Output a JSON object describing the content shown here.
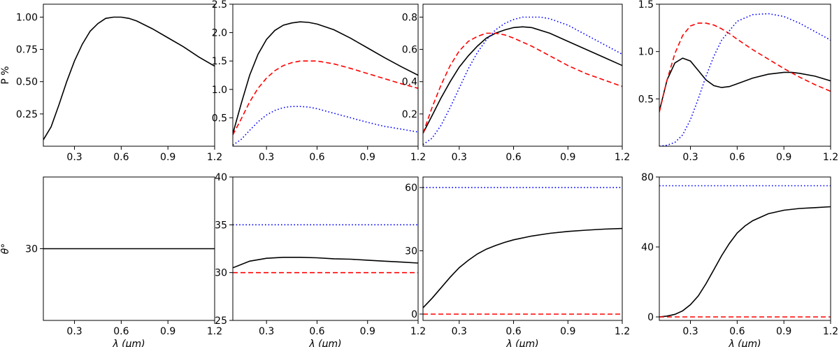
{
  "chart_data": [
    {
      "type": "line",
      "title": "",
      "xlabel": "",
      "ylabel": "P %",
      "xlim": [
        0.1,
        1.2
      ],
      "ylim": [
        0.0,
        1.1
      ],
      "xticks": [
        0.3,
        0.6,
        0.9,
        1.2
      ],
      "xtick_labels": [
        "0.3",
        "0.6",
        "0.9",
        "1.2"
      ],
      "yticks": [
        0.25,
        0.5,
        0.75,
        1.0
      ],
      "ytick_labels": [
        "0.25",
        "0.50",
        "0.75",
        "1.00"
      ],
      "series": [
        {
          "name": "black",
          "color": "#000000",
          "style": "solid",
          "x": [
            0.1,
            0.15,
            0.2,
            0.25,
            0.3,
            0.35,
            0.4,
            0.45,
            0.5,
            0.55,
            0.6,
            0.65,
            0.7,
            0.8,
            0.9,
            1.0,
            1.1,
            1.2
          ],
          "y": [
            0.05,
            0.15,
            0.32,
            0.5,
            0.66,
            0.79,
            0.89,
            0.95,
            0.99,
            1.0,
            1.0,
            0.99,
            0.97,
            0.91,
            0.84,
            0.77,
            0.69,
            0.62
          ]
        }
      ]
    },
    {
      "type": "line",
      "title": "",
      "xlabel": "",
      "ylabel": "",
      "xlim": [
        0.1,
        1.2
      ],
      "ylim": [
        0.0,
        2.5
      ],
      "xticks": [
        0.3,
        0.6,
        0.9,
        1.2
      ],
      "xtick_labels": [
        "0.3",
        "0.6",
        "0.9",
        "1.2"
      ],
      "yticks": [
        0.5,
        1.0,
        1.5,
        2.0,
        2.5
      ],
      "ytick_labels": [
        "0.5",
        "1.0",
        "1.5",
        "2.0",
        "2.5"
      ],
      "series": [
        {
          "name": "black",
          "color": "#000000",
          "style": "solid",
          "x": [
            0.1,
            0.15,
            0.2,
            0.25,
            0.3,
            0.35,
            0.4,
            0.45,
            0.5,
            0.55,
            0.6,
            0.7,
            0.8,
            0.9,
            1.0,
            1.1,
            1.2
          ],
          "y": [
            0.22,
            0.75,
            1.25,
            1.62,
            1.88,
            2.04,
            2.13,
            2.17,
            2.19,
            2.18,
            2.15,
            2.05,
            1.9,
            1.73,
            1.56,
            1.4,
            1.25
          ]
        },
        {
          "name": "red",
          "color": "#ff0000",
          "style": "dashed",
          "x": [
            0.1,
            0.15,
            0.2,
            0.25,
            0.3,
            0.35,
            0.4,
            0.45,
            0.5,
            0.55,
            0.6,
            0.7,
            0.8,
            0.9,
            1.0,
            1.1,
            1.2
          ],
          "y": [
            0.2,
            0.48,
            0.78,
            1.02,
            1.2,
            1.33,
            1.42,
            1.47,
            1.5,
            1.5,
            1.5,
            1.45,
            1.37,
            1.28,
            1.19,
            1.1,
            1.02
          ]
        },
        {
          "name": "blue",
          "color": "#0000ff",
          "style": "dotted",
          "x": [
            0.1,
            0.15,
            0.2,
            0.25,
            0.3,
            0.35,
            0.4,
            0.45,
            0.5,
            0.55,
            0.6,
            0.7,
            0.8,
            0.9,
            1.0,
            1.1,
            1.2
          ],
          "y": [
            0.02,
            0.12,
            0.28,
            0.43,
            0.55,
            0.63,
            0.68,
            0.7,
            0.7,
            0.69,
            0.66,
            0.58,
            0.5,
            0.42,
            0.35,
            0.3,
            0.25
          ]
        }
      ]
    },
    {
      "type": "line",
      "title": "",
      "xlabel": "",
      "ylabel": "",
      "xlim": [
        0.1,
        1.2
      ],
      "ylim": [
        0.0,
        0.88
      ],
      "xticks": [
        0.3,
        0.6,
        0.9,
        1.2
      ],
      "xtick_labels": [
        "0.3",
        "0.6",
        "0.9",
        "1.2"
      ],
      "yticks": [
        0.2,
        0.4,
        0.6,
        0.8
      ],
      "ytick_labels": [
        "0.2",
        "0.4",
        "0.6",
        "0.8"
      ],
      "series": [
        {
          "name": "black",
          "color": "#000000",
          "style": "solid",
          "x": [
            0.1,
            0.15,
            0.2,
            0.25,
            0.3,
            0.35,
            0.4,
            0.45,
            0.5,
            0.55,
            0.6,
            0.65,
            0.7,
            0.8,
            0.9,
            1.0,
            1.1,
            1.2
          ],
          "y": [
            0.08,
            0.19,
            0.3,
            0.4,
            0.49,
            0.56,
            0.62,
            0.67,
            0.7,
            0.72,
            0.735,
            0.74,
            0.735,
            0.7,
            0.65,
            0.6,
            0.55,
            0.5
          ]
        },
        {
          "name": "red",
          "color": "#ff0000",
          "style": "dashed",
          "x": [
            0.1,
            0.15,
            0.2,
            0.25,
            0.3,
            0.35,
            0.4,
            0.45,
            0.5,
            0.55,
            0.6,
            0.7,
            0.8,
            0.9,
            1.0,
            1.1,
            1.2
          ],
          "y": [
            0.08,
            0.24,
            0.38,
            0.5,
            0.59,
            0.65,
            0.68,
            0.7,
            0.7,
            0.69,
            0.67,
            0.62,
            0.56,
            0.5,
            0.45,
            0.41,
            0.37
          ]
        },
        {
          "name": "blue",
          "color": "#0000ff",
          "style": "dotted",
          "x": [
            0.1,
            0.15,
            0.2,
            0.25,
            0.3,
            0.35,
            0.4,
            0.45,
            0.5,
            0.55,
            0.6,
            0.65,
            0.7,
            0.75,
            0.8,
            0.9,
            1.0,
            1.1,
            1.2
          ],
          "y": [
            0.01,
            0.05,
            0.13,
            0.24,
            0.36,
            0.48,
            0.58,
            0.66,
            0.72,
            0.76,
            0.785,
            0.8,
            0.8,
            0.8,
            0.79,
            0.75,
            0.69,
            0.63,
            0.57
          ]
        }
      ]
    },
    {
      "type": "line",
      "title": "",
      "xlabel": "",
      "ylabel": "",
      "xlim": [
        0.1,
        1.2
      ],
      "ylim": [
        0.0,
        1.5
      ],
      "xticks": [
        0.3,
        0.6,
        0.9,
        1.2
      ],
      "xtick_labels": [
        "0.3",
        "0.6",
        "0.9",
        "1.2"
      ],
      "yticks": [
        0.5,
        1.0,
        1.5
      ],
      "ytick_labels": [
        "0.5",
        "1.0",
        "1.5"
      ],
      "series": [
        {
          "name": "black",
          "color": "#000000",
          "style": "solid",
          "x": [
            0.1,
            0.15,
            0.2,
            0.25,
            0.3,
            0.35,
            0.4,
            0.45,
            0.5,
            0.55,
            0.6,
            0.7,
            0.8,
            0.9,
            0.95,
            1.0,
            1.1,
            1.2
          ],
          "y": [
            0.37,
            0.7,
            0.88,
            0.93,
            0.9,
            0.8,
            0.7,
            0.64,
            0.62,
            0.63,
            0.66,
            0.72,
            0.76,
            0.78,
            0.78,
            0.77,
            0.74,
            0.69
          ]
        },
        {
          "name": "red",
          "color": "#ff0000",
          "style": "dashed",
          "x": [
            0.1,
            0.15,
            0.2,
            0.25,
            0.3,
            0.35,
            0.4,
            0.45,
            0.5,
            0.55,
            0.6,
            0.7,
            0.8,
            0.9,
            1.0,
            1.1,
            1.2
          ],
          "y": [
            0.36,
            0.7,
            0.98,
            1.17,
            1.27,
            1.3,
            1.3,
            1.28,
            1.24,
            1.19,
            1.13,
            1.02,
            0.92,
            0.82,
            0.73,
            0.65,
            0.58
          ]
        },
        {
          "name": "blue",
          "color": "#0000ff",
          "style": "dotted",
          "x": [
            0.1,
            0.15,
            0.2,
            0.25,
            0.3,
            0.35,
            0.4,
            0.45,
            0.5,
            0.6,
            0.7,
            0.8,
            0.9,
            1.0,
            1.1,
            1.2
          ],
          "y": [
            0.0,
            0.01,
            0.04,
            0.12,
            0.28,
            0.5,
            0.74,
            0.95,
            1.12,
            1.32,
            1.39,
            1.4,
            1.37,
            1.3,
            1.21,
            1.12
          ]
        }
      ]
    },
    {
      "type": "line",
      "title": "",
      "xlabel": "λ (μm)",
      "ylabel": "θ°",
      "xlim": [
        0.1,
        1.2
      ],
      "ylim": [
        26.0,
        34.0
      ],
      "xticks": [
        0.3,
        0.6,
        0.9,
        1.2
      ],
      "xtick_labels": [
        "0.3",
        "0.6",
        "0.9",
        "1.2"
      ],
      "yticks": [
        30
      ],
      "ytick_labels": [
        "30"
      ],
      "series": [
        {
          "name": "black",
          "color": "#000000",
          "style": "solid",
          "x": [
            0.1,
            1.2
          ],
          "y": [
            30,
            30
          ]
        }
      ]
    },
    {
      "type": "line",
      "title": "",
      "xlabel": "λ (μm)",
      "ylabel": "",
      "xlim": [
        0.1,
        1.2
      ],
      "ylim": [
        25.0,
        40.0
      ],
      "xticks": [
        0.3,
        0.6,
        0.9,
        1.2
      ],
      "xtick_labels": [
        "0.3",
        "0.6",
        "0.9",
        "1.2"
      ],
      "yticks": [
        25,
        30,
        35,
        40
      ],
      "ytick_labels": [
        "25",
        "30",
        "35",
        "40"
      ],
      "series": [
        {
          "name": "black",
          "color": "#000000",
          "style": "solid",
          "x": [
            0.1,
            0.2,
            0.3,
            0.4,
            0.5,
            0.6,
            0.7,
            0.8,
            0.9,
            1.0,
            1.1,
            1.2
          ],
          "y": [
            30.5,
            31.2,
            31.5,
            31.6,
            31.6,
            31.55,
            31.45,
            31.4,
            31.3,
            31.2,
            31.1,
            31.0
          ]
        },
        {
          "name": "red",
          "color": "#ff0000",
          "style": "dashed",
          "x": [
            0.1,
            1.2
          ],
          "y": [
            30,
            30
          ]
        },
        {
          "name": "blue",
          "color": "#0000ff",
          "style": "dotted",
          "x": [
            0.1,
            1.2
          ],
          "y": [
            35,
            35
          ]
        }
      ]
    },
    {
      "type": "line",
      "title": "",
      "xlabel": "λ (μm)",
      "ylabel": "",
      "xlim": [
        0.1,
        1.2
      ],
      "ylim": [
        -3.0,
        65.0
      ],
      "xticks": [
        0.3,
        0.6,
        0.9,
        1.2
      ],
      "xtick_labels": [
        "0.3",
        "0.6",
        "0.9",
        "1.2"
      ],
      "yticks": [
        0,
        30,
        60
      ],
      "ytick_labels": [
        "0",
        "30",
        "60"
      ],
      "series": [
        {
          "name": "black",
          "color": "#000000",
          "style": "solid",
          "x": [
            0.1,
            0.15,
            0.2,
            0.25,
            0.3,
            0.35,
            0.4,
            0.45,
            0.5,
            0.55,
            0.6,
            0.7,
            0.8,
            0.9,
            1.0,
            1.1,
            1.2
          ],
          "y": [
            3,
            7.5,
            12.5,
            17.5,
            22,
            25.5,
            28.5,
            30.8,
            32.5,
            34,
            35.2,
            37,
            38.3,
            39.2,
            39.8,
            40.3,
            40.6
          ]
        },
        {
          "name": "red",
          "color": "#ff0000",
          "style": "dashed",
          "x": [
            0.1,
            1.2
          ],
          "y": [
            0,
            0
          ]
        },
        {
          "name": "blue",
          "color": "#0000ff",
          "style": "dotted",
          "x": [
            0.1,
            1.2
          ],
          "y": [
            60,
            60
          ]
        }
      ]
    },
    {
      "type": "line",
      "title": "",
      "xlabel": "λ (μm)",
      "ylabel": "",
      "xlim": [
        0.1,
        1.2
      ],
      "ylim": [
        -2.0,
        80.0
      ],
      "xticks": [
        0.3,
        0.6,
        0.9,
        1.2
      ],
      "xtick_labels": [
        "0.3",
        "0.6",
        "0.9",
        "1.2"
      ],
      "yticks": [
        0,
        40,
        80
      ],
      "ytick_labels": [
        "0",
        "40",
        "80"
      ],
      "series": [
        {
          "name": "black",
          "color": "#000000",
          "style": "solid",
          "x": [
            0.1,
            0.15,
            0.2,
            0.25,
            0.3,
            0.35,
            0.4,
            0.45,
            0.5,
            0.55,
            0.6,
            0.65,
            0.7,
            0.8,
            0.9,
            1.0,
            1.1,
            1.2
          ],
          "y": [
            0,
            0.5,
            1.5,
            3.5,
            7,
            12,
            19,
            27,
            35,
            42,
            48,
            52,
            55,
            59,
            61,
            62,
            62.5,
            63
          ]
        },
        {
          "name": "red",
          "color": "#ff0000",
          "style": "dashed",
          "x": [
            0.1,
            1.2
          ],
          "y": [
            0,
            0
          ]
        },
        {
          "name": "blue",
          "color": "#0000ff",
          "style": "dotted",
          "x": [
            0.1,
            1.2
          ],
          "y": [
            75,
            75
          ]
        }
      ]
    }
  ]
}
